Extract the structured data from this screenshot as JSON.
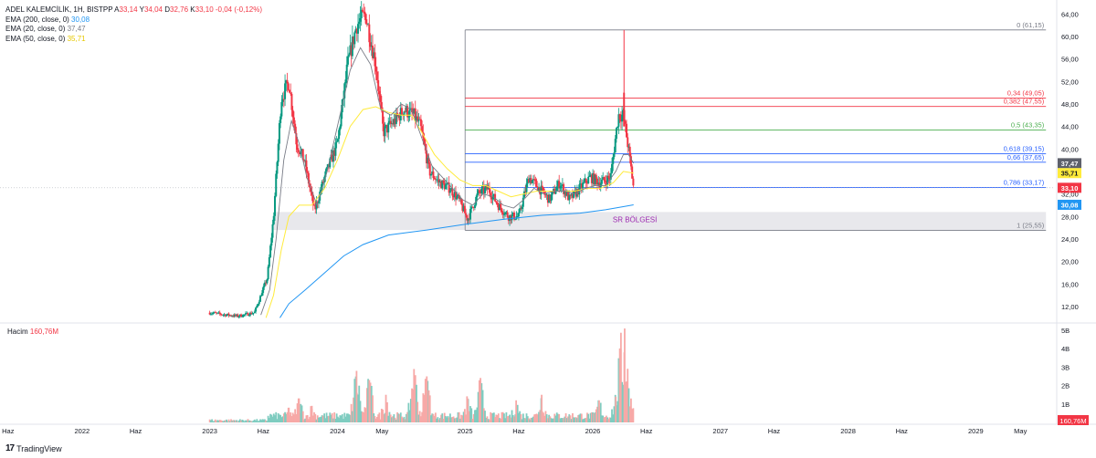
{
  "colors": {
    "up": "#089981",
    "down": "#f23645",
    "ema200": "#2196f3",
    "ema20": "#787b86",
    "ema50": "#ffeb3b",
    "fib_red": "#f23645",
    "fib_green": "#4caf50",
    "fib_blue": "#2962ff",
    "fib_gray": "#787b86",
    "zone": "#e8e8ec",
    "zone_text": "#9c27b0"
  },
  "legend": {
    "symbol": "ADEL KALEMCİLİK, 1H, BISTPP",
    "o_label": "A",
    "o_value": "33,14",
    "h_label": "Y",
    "h_value": "34,04",
    "l_label": "D",
    "l_value": "32,76",
    "c_label": "K",
    "c_value": "33,10",
    "change": "-0,04 (-0,12%)",
    "ema200_label": "EMA (200, close, 0)",
    "ema200_value": "30,08",
    "ema20_label": "EMA (20, close, 0)",
    "ema20_value": "37,47",
    "ema50_label": "EMA (50, close, 0)",
    "ema50_value": "35,71"
  },
  "volume_legend": {
    "label": "Hacim",
    "value": "160,76M"
  },
  "branding": {
    "name": "TradingView"
  },
  "chart_data": {
    "type": "candlestick",
    "symbol": "ADEL KALEMCİLİK",
    "timeframe": "1H",
    "price_axis": {
      "ticks": [
        "64,00",
        "60,00",
        "56,00",
        "52,00",
        "48,00",
        "44,00",
        "40,00",
        "36,00",
        "32,00",
        "28,00",
        "24,00",
        "20,00",
        "16,00",
        "12,00"
      ],
      "tick_values": [
        64,
        60,
        56,
        52,
        48,
        44,
        40,
        36,
        32,
        28,
        24,
        20,
        16,
        12
      ],
      "range": [
        10,
        65
      ]
    },
    "volume_axis": {
      "ticks": [
        "5B",
        "4B",
        "3B",
        "2B",
        "1B"
      ],
      "tick_values": [
        5,
        4,
        3,
        2,
        1
      ],
      "unit": "B"
    },
    "time_axis": [
      "Haz",
      "2022",
      "Haz",
      "2023",
      "Haz",
      "2024",
      "May",
      "2025",
      "Haz",
      "2026",
      "Haz",
      "2027",
      "Haz",
      "2028",
      "Haz",
      "2029",
      "May"
    ],
    "time_axis_positions": [
      2021.42,
      2022.0,
      2022.42,
      2023.0,
      2023.42,
      2024.0,
      2024.35,
      2025.0,
      2025.42,
      2026.0,
      2026.42,
      2027.0,
      2027.42,
      2028.0,
      2028.42,
      2029.0,
      2029.35
    ],
    "price_points": [
      {
        "t": 2023.0,
        "p": 10.9
      },
      {
        "t": 2023.1,
        "p": 10.6
      },
      {
        "t": 2023.22,
        "p": 10.3
      },
      {
        "t": 2023.35,
        "p": 10.9
      },
      {
        "t": 2023.45,
        "p": 17
      },
      {
        "t": 2023.5,
        "p": 28
      },
      {
        "t": 2023.56,
        "p": 49
      },
      {
        "t": 2023.62,
        "p": 52
      },
      {
        "t": 2023.68,
        "p": 41
      },
      {
        "t": 2023.74,
        "p": 38
      },
      {
        "t": 2023.82,
        "p": 29
      },
      {
        "t": 2023.9,
        "p": 35
      },
      {
        "t": 2024.0,
        "p": 41
      },
      {
        "t": 2024.08,
        "p": 55
      },
      {
        "t": 2024.15,
        "p": 62
      },
      {
        "t": 2024.22,
        "p": 64
      },
      {
        "t": 2024.3,
        "p": 55
      },
      {
        "t": 2024.36,
        "p": 43
      },
      {
        "t": 2024.45,
        "p": 45
      },
      {
        "t": 2024.52,
        "p": 47
      },
      {
        "t": 2024.6,
        "p": 46
      },
      {
        "t": 2024.65,
        "p": 44
      },
      {
        "t": 2024.72,
        "p": 36
      },
      {
        "t": 2024.8,
        "p": 34
      },
      {
        "t": 2024.88,
        "p": 33
      },
      {
        "t": 2024.95,
        "p": 31
      },
      {
        "t": 2025.02,
        "p": 27.5
      },
      {
        "t": 2025.1,
        "p": 32
      },
      {
        "t": 2025.18,
        "p": 33
      },
      {
        "t": 2025.26,
        "p": 30
      },
      {
        "t": 2025.34,
        "p": 28
      },
      {
        "t": 2025.42,
        "p": 28
      },
      {
        "t": 2025.5,
        "p": 35
      },
      {
        "t": 2025.58,
        "p": 33
      },
      {
        "t": 2025.66,
        "p": 31
      },
      {
        "t": 2025.74,
        "p": 34
      },
      {
        "t": 2025.82,
        "p": 31
      },
      {
        "t": 2025.9,
        "p": 33
      },
      {
        "t": 2025.98,
        "p": 35
      },
      {
        "t": 2026.06,
        "p": 34
      },
      {
        "t": 2026.14,
        "p": 35
      },
      {
        "t": 2026.2,
        "p": 46
      },
      {
        "t": 2026.24,
        "p": 46
      },
      {
        "t": 2026.28,
        "p": 40
      },
      {
        "t": 2026.32,
        "p": 33.1
      }
    ],
    "ema200_points": [
      {
        "t": 2023.55,
        "p": 10
      },
      {
        "t": 2023.62,
        "p": 12.5
      },
      {
        "t": 2023.75,
        "p": 15
      },
      {
        "t": 2023.9,
        "p": 18
      },
      {
        "t": 2024.05,
        "p": 21
      },
      {
        "t": 2024.2,
        "p": 23
      },
      {
        "t": 2024.4,
        "p": 24.7
      },
      {
        "t": 2024.7,
        "p": 25.6
      },
      {
        "t": 2025.0,
        "p": 26.6
      },
      {
        "t": 2025.3,
        "p": 27.5
      },
      {
        "t": 2025.6,
        "p": 28.2
      },
      {
        "t": 2025.9,
        "p": 28.6
      },
      {
        "t": 2026.1,
        "p": 29.2
      },
      {
        "t": 2026.25,
        "p": 29.8
      },
      {
        "t": 2026.32,
        "p": 30.08
      }
    ],
    "ema20_points": [
      {
        "t": 2023.4,
        "p": 10.5
      },
      {
        "t": 2023.47,
        "p": 15
      },
      {
        "t": 2023.52,
        "p": 24
      },
      {
        "t": 2023.58,
        "p": 38
      },
      {
        "t": 2023.64,
        "p": 45
      },
      {
        "t": 2023.7,
        "p": 41
      },
      {
        "t": 2023.76,
        "p": 35
      },
      {
        "t": 2023.84,
        "p": 30
      },
      {
        "t": 2023.92,
        "p": 36
      },
      {
        "t": 2024.02,
        "p": 46
      },
      {
        "t": 2024.1,
        "p": 54
      },
      {
        "t": 2024.18,
        "p": 58
      },
      {
        "t": 2024.26,
        "p": 55
      },
      {
        "t": 2024.34,
        "p": 47
      },
      {
        "t": 2024.42,
        "p": 46
      },
      {
        "t": 2024.5,
        "p": 48
      },
      {
        "t": 2024.58,
        "p": 47
      },
      {
        "t": 2024.66,
        "p": 42
      },
      {
        "t": 2024.74,
        "p": 37
      },
      {
        "t": 2024.82,
        "p": 35
      },
      {
        "t": 2024.9,
        "p": 33
      },
      {
        "t": 2024.98,
        "p": 31
      },
      {
        "t": 2025.06,
        "p": 30
      },
      {
        "t": 2025.14,
        "p": 32
      },
      {
        "t": 2025.22,
        "p": 31.5
      },
      {
        "t": 2025.3,
        "p": 30
      },
      {
        "t": 2025.38,
        "p": 29.5
      },
      {
        "t": 2025.46,
        "p": 31
      },
      {
        "t": 2025.54,
        "p": 33
      },
      {
        "t": 2025.62,
        "p": 32
      },
      {
        "t": 2025.7,
        "p": 32.5
      },
      {
        "t": 2025.78,
        "p": 32.5
      },
      {
        "t": 2025.86,
        "p": 32
      },
      {
        "t": 2025.94,
        "p": 33
      },
      {
        "t": 2026.02,
        "p": 33.5
      },
      {
        "t": 2026.1,
        "p": 33.5
      },
      {
        "t": 2026.18,
        "p": 36
      },
      {
        "t": 2026.24,
        "p": 39
      },
      {
        "t": 2026.28,
        "p": 39
      },
      {
        "t": 2026.32,
        "p": 37.47
      }
    ],
    "ema50_points": [
      {
        "t": 2023.44,
        "p": 10
      },
      {
        "t": 2023.5,
        "p": 14
      },
      {
        "t": 2023.56,
        "p": 22
      },
      {
        "t": 2023.62,
        "p": 28
      },
      {
        "t": 2023.7,
        "p": 30
      },
      {
        "t": 2023.8,
        "p": 30
      },
      {
        "t": 2023.9,
        "p": 33
      },
      {
        "t": 2024.0,
        "p": 38
      },
      {
        "t": 2024.1,
        "p": 44
      },
      {
        "t": 2024.2,
        "p": 47
      },
      {
        "t": 2024.3,
        "p": 47.5
      },
      {
        "t": 2024.4,
        "p": 46.5
      },
      {
        "t": 2024.5,
        "p": 46
      },
      {
        "t": 2024.58,
        "p": 46
      },
      {
        "t": 2024.66,
        "p": 43
      },
      {
        "t": 2024.76,
        "p": 39
      },
      {
        "t": 2024.86,
        "p": 36.5
      },
      {
        "t": 2024.96,
        "p": 34.5
      },
      {
        "t": 2025.06,
        "p": 33.5
      },
      {
        "t": 2025.16,
        "p": 33.5
      },
      {
        "t": 2025.26,
        "p": 32.5
      },
      {
        "t": 2025.36,
        "p": 31.5
      },
      {
        "t": 2025.46,
        "p": 32
      },
      {
        "t": 2025.56,
        "p": 32.5
      },
      {
        "t": 2025.66,
        "p": 32.5
      },
      {
        "t": 2025.76,
        "p": 32.5
      },
      {
        "t": 2025.86,
        "p": 32.5
      },
      {
        "t": 2025.96,
        "p": 33
      },
      {
        "t": 2026.06,
        "p": 33
      },
      {
        "t": 2026.16,
        "p": 34
      },
      {
        "t": 2026.24,
        "p": 36
      },
      {
        "t": 2026.32,
        "p": 35.71
      }
    ],
    "fib_levels": [
      {
        "label": "0 (61,15)",
        "value": 61.15,
        "color": "#787b86"
      },
      {
        "label": "0,34 (49,05)",
        "value": 49.05,
        "color": "#f23645"
      },
      {
        "label": "0,382 (47,55)",
        "value": 47.55,
        "color": "#f23645"
      },
      {
        "label": "0,5 (43,35)",
        "value": 43.35,
        "color": "#4caf50"
      },
      {
        "label": "0,618 (39,15)",
        "value": 39.15,
        "color": "#2962ff"
      },
      {
        "label": "0,66 (37,65)",
        "value": 37.65,
        "color": "#2962ff"
      },
      {
        "label": "0,786 (33,17)",
        "value": 33.17,
        "color": "#2962ff"
      },
      {
        "label": "1 (25,55)",
        "value": 25.55,
        "color": "#787b86"
      }
    ],
    "fib_range_t": [
      2025.0,
      2029.55
    ],
    "support_zone": {
      "label": "SR BÖLGESİ",
      "low": 25.6,
      "high": 28.8,
      "t_start": 2023.5,
      "t_end": 2029.55
    },
    "last_price_line": 33.1,
    "price_labels": [
      {
        "text": "37,47",
        "value": 37.47,
        "bg": "#5d606b",
        "fg": "#ffffff"
      },
      {
        "text": "35,71",
        "value": 35.71,
        "bg": "#ffeb3b",
        "fg": "#131722"
      },
      {
        "text": "33,10",
        "value": 33.1,
        "bg": "#f23645",
        "fg": "#ffffff"
      },
      {
        "text": "30,08",
        "value": 30.08,
        "bg": "#2196f3",
        "fg": "#ffffff"
      }
    ],
    "volume_label": {
      "text": "160,76M",
      "bg": "#f23645",
      "fg": "#ffffff"
    },
    "volume_peaks": [
      {
        "t": 2023.62,
        "v": 0.8
      },
      {
        "t": 2023.7,
        "v": 1.3
      },
      {
        "t": 2023.8,
        "v": 0.9
      },
      {
        "t": 2024.15,
        "v": 2.8
      },
      {
        "t": 2024.25,
        "v": 2.3
      },
      {
        "t": 2024.38,
        "v": 1.5
      },
      {
        "t": 2024.6,
        "v": 2.9
      },
      {
        "t": 2024.7,
        "v": 2.5
      },
      {
        "t": 2025.02,
        "v": 1.3
      },
      {
        "t": 2025.12,
        "v": 2.2
      },
      {
        "t": 2025.4,
        "v": 1.2
      },
      {
        "t": 2025.6,
        "v": 1.5
      },
      {
        "t": 2026.05,
        "v": 1.2
      },
      {
        "t": 2026.18,
        "v": 1.4
      },
      {
        "t": 2026.22,
        "v": 4.0
      },
      {
        "t": 2026.25,
        "v": 5.1
      },
      {
        "t": 2026.3,
        "v": 1.3
      }
    ]
  }
}
